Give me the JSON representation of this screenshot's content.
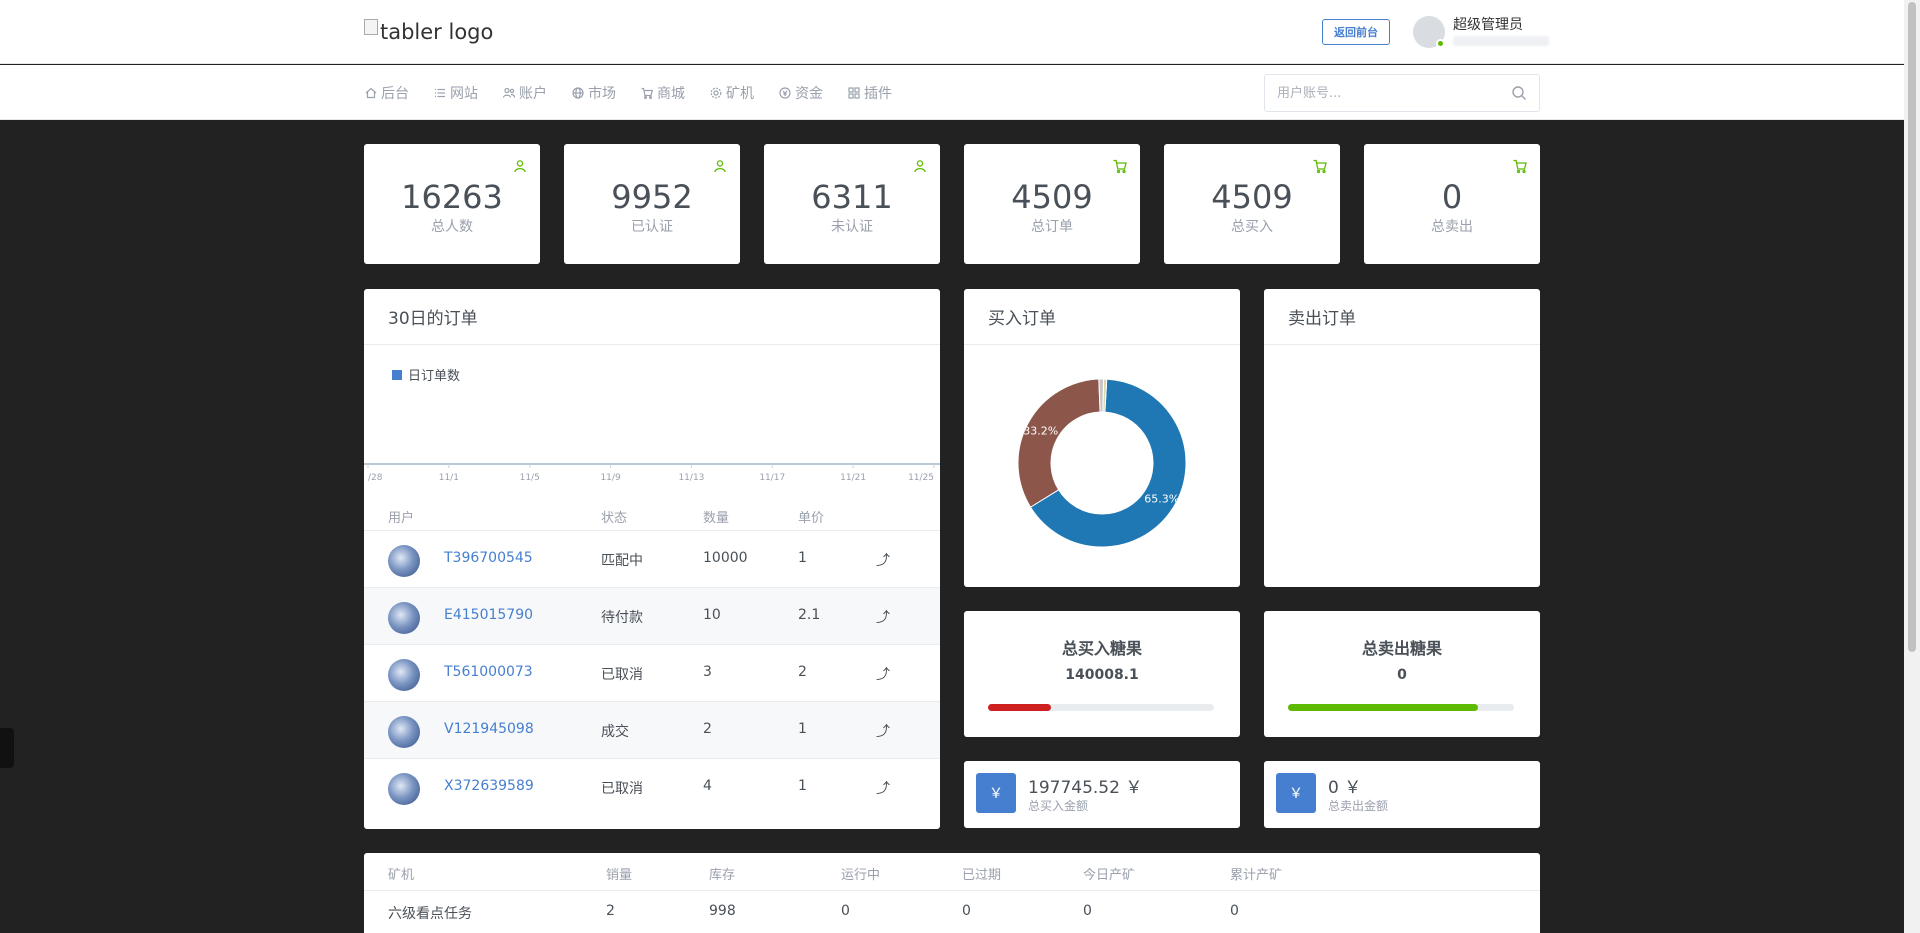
{
  "header": {
    "logo_alt": "tabler logo",
    "back_front_label": "返回前台",
    "user_name": "超级管理员"
  },
  "nav": {
    "items": [
      {
        "label": "后台",
        "icon": "home-icon"
      },
      {
        "label": "网站",
        "icon": "list-icon"
      },
      {
        "label": "账户",
        "icon": "users-icon"
      },
      {
        "label": "市场",
        "icon": "globe-icon"
      },
      {
        "label": "商城",
        "icon": "cart-icon"
      },
      {
        "label": "矿机",
        "icon": "settings-icon"
      },
      {
        "label": "资金",
        "icon": "coin-icon"
      },
      {
        "label": "插件",
        "icon": "grid-icon"
      }
    ],
    "search_placeholder": "用户账号..."
  },
  "stats": [
    {
      "value": "16263",
      "label": "总人数",
      "icon": "user-icon"
    },
    {
      "value": "9952",
      "label": "已认证",
      "icon": "user-icon"
    },
    {
      "value": "6311",
      "label": "未认证",
      "icon": "user-icon"
    },
    {
      "value": "4509",
      "label": "总订单",
      "icon": "cart-icon"
    },
    {
      "value": "4509",
      "label": "总买入",
      "icon": "cart-icon"
    },
    {
      "value": "0",
      "label": "总卖出",
      "icon": "cart-icon"
    }
  ],
  "orders_chart": {
    "title": "30日的订单",
    "legend": "日订单数",
    "x_ticks": [
      "/28",
      "11/1",
      "11/5",
      "11/9",
      "11/13",
      "11/17",
      "11/21",
      "11/25"
    ],
    "color": "#467fcf"
  },
  "orders_table": {
    "headers": {
      "user": "用户",
      "status": "状态",
      "qty": "数量",
      "price": "单价"
    },
    "rows": [
      {
        "user": "T396700545",
        "status": "匹配中",
        "qty": "10000",
        "price": "1",
        "action": "⤴"
      },
      {
        "user": "E415015790",
        "status": "待付款",
        "qty": "10",
        "price": "2.1",
        "action": "⤴"
      },
      {
        "user": "T561000073",
        "status": "已取消",
        "qty": "3",
        "price": "2",
        "action": "⤴"
      },
      {
        "user": "V121945098",
        "status": "成交",
        "qty": "2",
        "price": "1",
        "action": "⤴"
      },
      {
        "user": "X372639589",
        "status": "已取消",
        "qty": "4",
        "price": "1",
        "action": "⤴"
      }
    ]
  },
  "buy_orders": {
    "title": "买入订单",
    "chart_data": {
      "type": "pie",
      "slices": [
        {
          "label": "65.3%",
          "value": 65.3,
          "color": "#1f77b4"
        },
        {
          "label": "33.2%",
          "value": 33.2,
          "color": "#8c564b"
        },
        {
          "label": "",
          "value": 0.9,
          "color": "#c7c7c7"
        },
        {
          "label": "",
          "value": 0.6,
          "color": "#d9d9b0"
        }
      ]
    }
  },
  "sell_orders": {
    "title": "卖出订单"
  },
  "total_buy_candy": {
    "title": "总买入糖果",
    "value": "140008.1",
    "progress": 0.28,
    "color": "#cd201f"
  },
  "total_sell_candy": {
    "title": "总卖出糖果",
    "value": "0",
    "progress": 0.84,
    "color": "#5eba00"
  },
  "total_buy_amount": {
    "value": "197745.52 ￥",
    "label": "总买入金额",
    "badge": "￥"
  },
  "total_sell_amount": {
    "value": "0 ￥",
    "label": "总卖出金额",
    "badge": "￥"
  },
  "miners_table": {
    "headers": [
      "矿机",
      "销量",
      "库存",
      "运行中",
      "已过期",
      "今日产矿",
      "累计产矿"
    ],
    "rows": [
      [
        "六级看点任务",
        "2",
        "998",
        "0",
        "0",
        "0",
        "0"
      ]
    ]
  }
}
